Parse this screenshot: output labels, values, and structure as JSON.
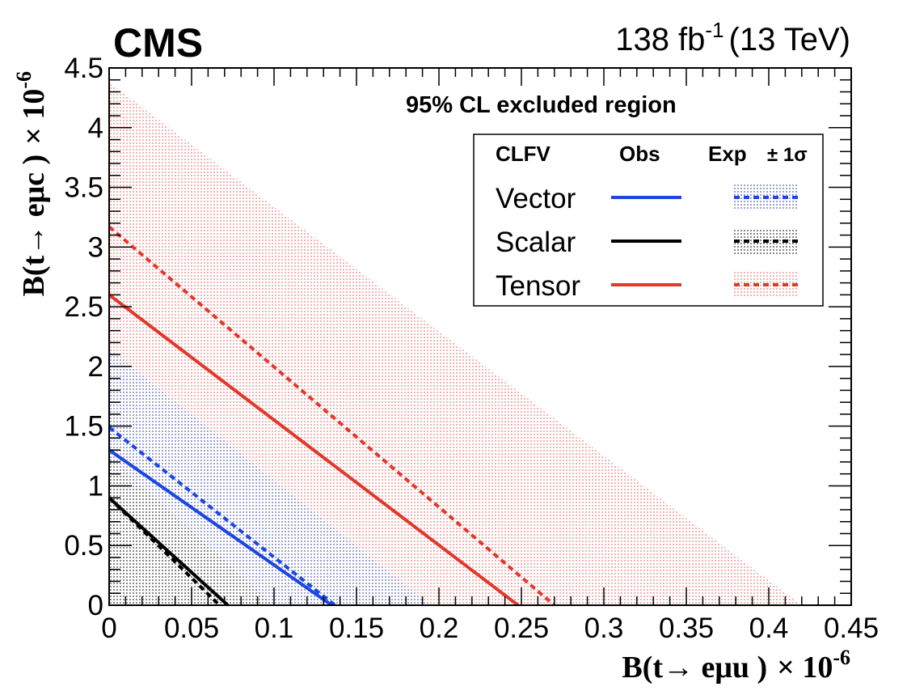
{
  "chart_data": {
    "type": "line",
    "experiment": "CMS",
    "lumi_prefix": "138 fb",
    "lumi_exponent": "-1",
    "energy": "(13 TeV)",
    "annotation": "95% CL excluded region",
    "xlabel_main": "B(t→ eμu )",
    "xlabel_scale": "× 10",
    "xlabel_exponent": "-6",
    "ylabel_main": "B(t→ eμc )",
    "ylabel_scale": "× 10",
    "ylabel_exponent": "-6",
    "xlim": [
      0,
      0.45
    ],
    "ylim": [
      0,
      4.5
    ],
    "x_ticks": [
      "0",
      "0.05",
      "0.1",
      "0.15",
      "0.2",
      "0.25",
      "0.3",
      "0.35",
      "0.4",
      "0.45"
    ],
    "y_ticks": [
      "0",
      "0.5",
      "1",
      "1.5",
      "2",
      "2.5",
      "3",
      "3.5",
      "4",
      "4.5"
    ],
    "legend": {
      "position": "top-right",
      "header": {
        "col1": "CLFV",
        "col2": "Obs",
        "col3": "Exp",
        "col3_sym": "± 1σ"
      },
      "entries": [
        {
          "label": "Vector",
          "color": "#1b46e0"
        },
        {
          "label": "Scalar",
          "color": "#000000"
        },
        {
          "label": "Tensor",
          "color": "#e0382a"
        }
      ]
    },
    "series": [
      {
        "name": "Tensor",
        "color": "#e0382a",
        "band_color": "#f29a9a",
        "observed": {
          "x_intercept": 0.248,
          "y_intercept": 2.6
        },
        "expected": {
          "x_intercept": 0.27,
          "y_intercept": 3.17
        },
        "band_minus": {
          "x_intercept": 0.0,
          "y_intercept": 0.0
        },
        "band_plus": {
          "x_intercept": 0.42,
          "y_intercept": 4.38
        }
      },
      {
        "name": "Vector",
        "color": "#1b46e0",
        "band_color": "#8f95c6",
        "observed": {
          "x_intercept": 0.135,
          "y_intercept": 1.3
        },
        "expected": {
          "x_intercept": 0.137,
          "y_intercept": 1.49
        },
        "band_minus": {
          "x_intercept": 0.0,
          "y_intercept": 0.0
        },
        "band_plus": {
          "x_intercept": 0.195,
          "y_intercept": 2.15
        }
      },
      {
        "name": "Scalar",
        "color": "#000000",
        "band_color": "#808080",
        "observed": {
          "x_intercept": 0.072,
          "y_intercept": 0.9
        },
        "expected": {
          "x_intercept": 0.067,
          "y_intercept": 0.9
        },
        "band_minus": {
          "x_intercept": 0.0,
          "y_intercept": 0.0
        },
        "band_plus": {
          "x_intercept": 0.1,
          "y_intercept": 1.25
        }
      }
    ]
  }
}
